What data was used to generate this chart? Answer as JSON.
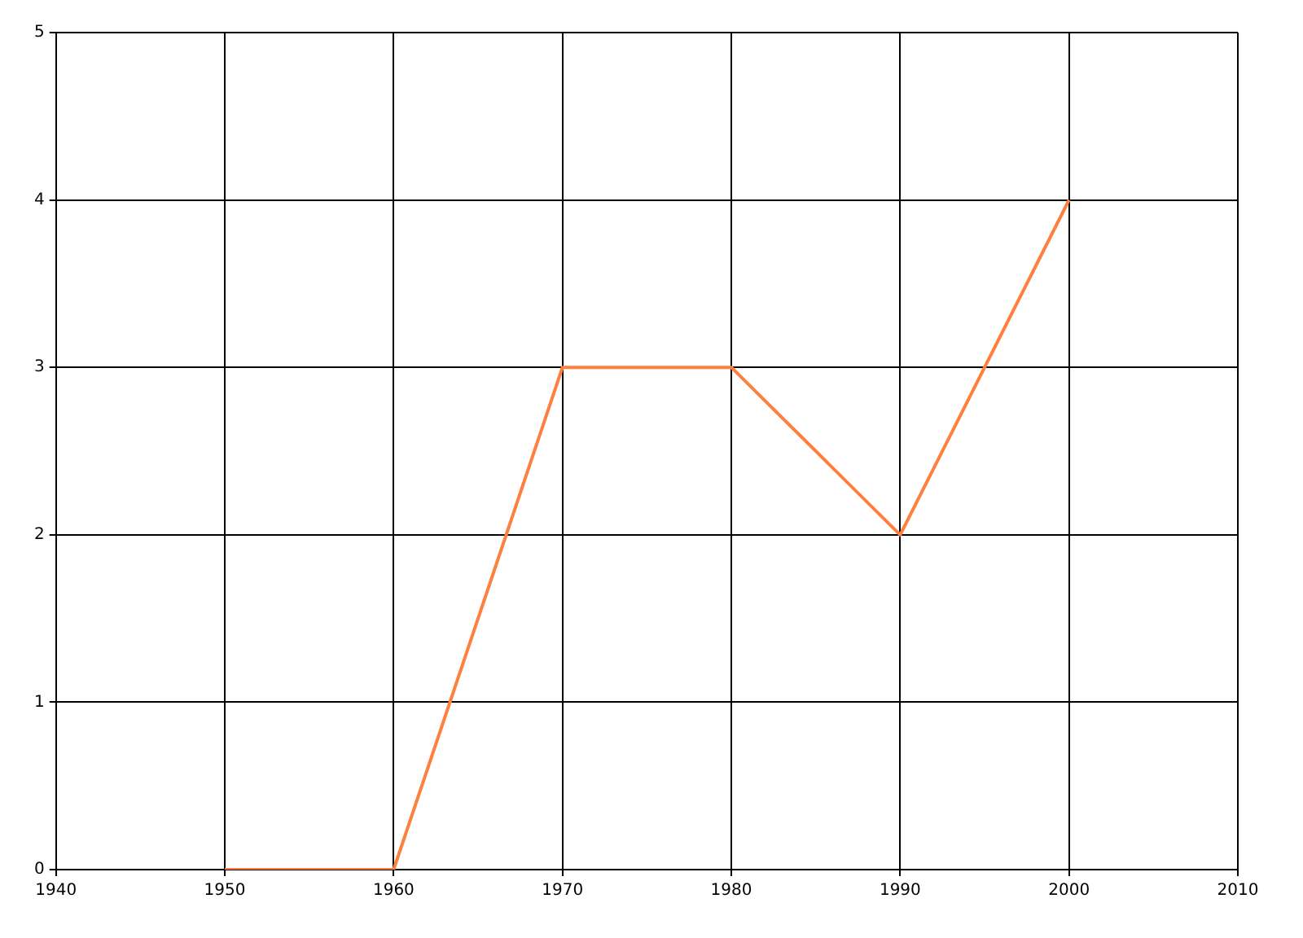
{
  "chart_data": {
    "type": "line",
    "x": [
      1950,
      1960,
      1970,
      1980,
      1990,
      2000
    ],
    "series": [
      {
        "color": "#ff7f3f",
        "values": [
          0,
          0,
          3,
          3,
          2,
          4
        ]
      }
    ],
    "xlim": [
      1940,
      2010
    ],
    "xticks": [
      1940,
      1950,
      1960,
      1970,
      1980,
      1990,
      2000,
      2010
    ],
    "ylim": [
      0,
      5
    ],
    "yticks": [
      0,
      1,
      2,
      3,
      4,
      5
    ],
    "grid": true,
    "legend": false,
    "marker": "none",
    "line_style": "solid"
  }
}
